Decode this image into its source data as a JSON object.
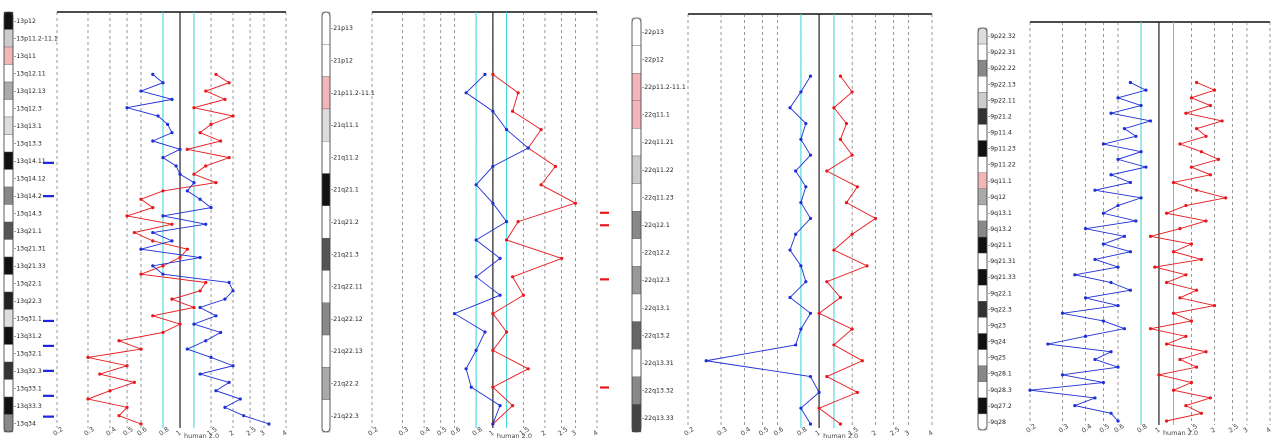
{
  "colors": {
    "series_a": "#e8171c",
    "series_b": "#1f2fd6",
    "threshold": "#37d6dc",
    "grid": "#555555",
    "centromere": "#f2b6b8",
    "marker_blue": "#1d24e2",
    "marker_red": "#e8171c"
  },
  "chart_data": [
    {
      "type": "line",
      "chromosome": "13",
      "x_tick_labels": [
        "0.2",
        "0.3",
        "0.4",
        "0.5",
        "0.6",
        "0.8",
        "1",
        "1.5",
        "2",
        "2.5",
        "3",
        "4"
      ],
      "x_axis_overlay_label": "human 2.0",
      "bands": [
        {
          "name": "13p12"
        },
        {
          "name": "13p11.2-11.1"
        },
        {
          "name": "13q11"
        },
        {
          "name": "13q12.11"
        },
        {
          "name": "13q12.13"
        },
        {
          "name": "13q12.3"
        },
        {
          "name": "13q13.1"
        },
        {
          "name": "13q13.3"
        },
        {
          "name": "13q14.11"
        },
        {
          "name": "13q14.12"
        },
        {
          "name": "13q14.2"
        },
        {
          "name": "13q14.3"
        },
        {
          "name": "13q21.1"
        },
        {
          "name": "13q21.31"
        },
        {
          "name": "13q21.33"
        },
        {
          "name": "13q22.1"
        },
        {
          "name": "13q22.3"
        },
        {
          "name": "13q31.1"
        },
        {
          "name": "13q31.2"
        },
        {
          "name": "13q32.1"
        },
        {
          "name": "13q32.3"
        },
        {
          "name": "13q33.1"
        },
        {
          "name": "13q33.3"
        },
        {
          "name": "13q34"
        }
      ],
      "series": [
        {
          "values": [
            1.6,
            1.9,
            1.4,
            1.8,
            1.2,
            2.0,
            1.5,
            1.3,
            1.7,
            1.1,
            1.9,
            1.4,
            1.2,
            1.6,
            0.8,
            0.6,
            0.7,
            0.5,
            0.9,
            0.55,
            0.7,
            1.1,
            1.0,
            0.8,
            0.6,
            1.4,
            1.3,
            0.9,
            1.2,
            0.7,
            1.0,
            0.8,
            0.45,
            0.6,
            0.3,
            0.5,
            0.35,
            0.55,
            0.4,
            0.3,
            0.5,
            0.45,
            0.6
          ]
        },
        {
          "values": [
            0.7,
            0.8,
            0.6,
            0.9,
            0.5,
            0.75,
            0.85,
            0.9,
            0.7,
            1.0,
            0.8,
            0.95,
            1.0,
            1.2,
            1.1,
            1.3,
            1.5,
            0.8,
            1.4,
            0.7,
            0.9,
            0.6,
            1.3,
            0.7,
            0.8,
            1.9,
            2.0,
            1.8,
            1.3,
            1.6,
            1.2,
            1.7,
            1.4,
            1.1,
            1.5,
            2.0,
            1.3,
            1.9,
            1.6,
            2.2,
            1.8,
            2.3,
            3.2
          ]
        }
      ],
      "aberration_marks": [
        {
          "position": 0.36
        },
        {
          "position": 0.44
        },
        {
          "position": 0.74
        },
        {
          "position": 0.8
        },
        {
          "position": 0.86
        },
        {
          "position": 0.92
        },
        {
          "position": 0.97
        }
      ]
    },
    {
      "type": "line",
      "chromosome": "21",
      "x_tick_labels": [
        "0.2",
        "0.3",
        "0.4",
        "0.5",
        "0.6",
        "0.8",
        "1",
        "1.5",
        "2",
        "2.5",
        "3",
        "4"
      ],
      "x_axis_overlay_label": "human 2.0",
      "bands": [
        {
          "name": "21p13"
        },
        {
          "name": "21p12"
        },
        {
          "name": "21p11.2-11.1"
        },
        {
          "name": "21q11.1"
        },
        {
          "name": "21q11.2"
        },
        {
          "name": "21q21.1"
        },
        {
          "name": "21q21.2"
        },
        {
          "name": "21q21.3"
        },
        {
          "name": "21q22.11"
        },
        {
          "name": "21q22.12"
        },
        {
          "name": "21q22.13"
        },
        {
          "name": "21q22.2"
        },
        {
          "name": "21q22.3"
        }
      ],
      "series": [
        {
          "values": [
            1.0,
            1.4,
            1.3,
            1.9,
            1.6,
            2.3,
            1.9,
            3.0,
            1.4,
            1.2,
            2.5,
            1.3,
            1.5,
            1.0,
            1.2,
            1.0,
            1.6,
            1.0,
            1.3,
            1.0
          ]
        },
        {
          "values": [
            0.9,
            0.7,
            1.0,
            1.2,
            1.6,
            1.0,
            0.8,
            1.0,
            1.2,
            0.8,
            1.1,
            0.8,
            1.1,
            0.6,
            0.9,
            0.8,
            0.7,
            0.75,
            1.1,
            1.0
          ]
        }
      ],
      "aberration_marks": [
        {
          "position": 0.48
        },
        {
          "position": 0.51
        },
        {
          "position": 0.64
        },
        {
          "position": 0.9
        }
      ]
    },
    {
      "type": "line",
      "chromosome": "22",
      "x_tick_labels": [
        "0.2",
        "0.3",
        "0.4",
        "0.5",
        "0.6",
        "0.8",
        "1",
        "1.5",
        "2",
        "2.5",
        "3",
        "4"
      ],
      "x_axis_overlay_label": "human 2.0",
      "bands": [
        {
          "name": "22p13"
        },
        {
          "name": "22p12"
        },
        {
          "name": "22p11.2-11.1"
        },
        {
          "name": "22q11.1"
        },
        {
          "name": "22q11.21"
        },
        {
          "name": "22q11.22"
        },
        {
          "name": "22q11.23"
        },
        {
          "name": "22q12.1"
        },
        {
          "name": "22q12.2"
        },
        {
          "name": "22q12.3"
        },
        {
          "name": "22q13.1"
        },
        {
          "name": "22q13.2"
        },
        {
          "name": "22q13.31"
        },
        {
          "name": "22q13.32"
        },
        {
          "name": "22q13.33"
        }
      ],
      "series": [
        {
          "values": [
            1.3,
            1.5,
            1.2,
            1.4,
            1.3,
            1.5,
            1.1,
            1.6,
            1.4,
            2.0,
            1.5,
            1.2,
            1.8,
            1.1,
            1.3,
            1.0,
            1.5,
            1.2,
            1.7,
            1.1,
            1.6,
            1.0,
            1.3
          ]
        },
        {
          "values": [
            0.9,
            0.8,
            0.7,
            0.85,
            0.8,
            0.9,
            0.75,
            0.85,
            0.8,
            0.9,
            0.75,
            0.7,
            0.8,
            0.85,
            0.7,
            0.9,
            0.8,
            0.75,
            0.25,
            0.9,
            1.0,
            0.8,
            0.9
          ]
        }
      ],
      "aberration_marks": []
    },
    {
      "type": "line",
      "chromosome": "9",
      "x_tick_labels": [
        "0.2",
        "0.3",
        "0.4",
        "0.5",
        "0.6",
        "0.8",
        "1",
        "1.5",
        "2",
        "2.5",
        "3",
        "4"
      ],
      "x_axis_overlay_label": "human 2.0",
      "bands": [
        {
          "name": "9p22.32"
        },
        {
          "name": "9p22.31"
        },
        {
          "name": "9p22.22"
        },
        {
          "name": "9p22.13"
        },
        {
          "name": "9p22.11"
        },
        {
          "name": "9p21.2"
        },
        {
          "name": "9p11.4"
        },
        {
          "name": "9p11.23"
        },
        {
          "name": "9p11.22"
        },
        {
          "name": "9q11.1"
        },
        {
          "name": "9q12"
        },
        {
          "name": "9q13.1"
        },
        {
          "name": "9q13.2"
        },
        {
          "name": "9q21.1"
        },
        {
          "name": "9q21.31"
        },
        {
          "name": "9q21.33"
        },
        {
          "name": "9q22.1"
        },
        {
          "name": "9q22.3"
        },
        {
          "name": "9q23"
        },
        {
          "name": "9q24"
        },
        {
          "name": "9q25"
        },
        {
          "name": "9q28.1"
        },
        {
          "name": "9q28.3"
        },
        {
          "name": "9q27.2"
        },
        {
          "name": "9q28"
        }
      ],
      "series": [
        {
          "values": [
            1.6,
            2.0,
            1.5,
            1.9,
            1.4,
            2.2,
            1.6,
            1.8,
            1.3,
            1.7,
            2.1,
            1.5,
            1.9,
            1.2,
            1.6,
            2.3,
            1.4,
            1.1,
            1.8,
            1.3,
            0.9,
            1.5,
            1.2,
            1.7,
            0.95,
            1.4,
            1.1,
            1.6,
            1.3,
            2.0,
            1.2,
            1.5,
            0.9,
            1.4,
            1.1,
            1.8,
            1.3,
            1.6,
            1.0,
            1.5,
            1.2,
            1.9,
            1.4,
            1.7,
            1.1
          ]
        },
        {
          "values": [
            0.7,
            0.85,
            0.6,
            0.8,
            0.55,
            0.9,
            0.65,
            0.75,
            0.5,
            0.8,
            0.6,
            0.85,
            0.55,
            0.7,
            0.45,
            0.8,
            0.6,
            0.5,
            0.75,
            0.4,
            0.65,
            0.5,
            0.7,
            0.45,
            0.6,
            0.35,
            0.55,
            0.7,
            0.4,
            0.6,
            0.3,
            0.5,
            0.65,
            0.4,
            0.25,
            0.55,
            0.45,
            0.6,
            0.3,
            0.5,
            0.2,
            0.45,
            0.35,
            0.55,
            0.6
          ]
        }
      ],
      "aberration_marks": []
    }
  ]
}
